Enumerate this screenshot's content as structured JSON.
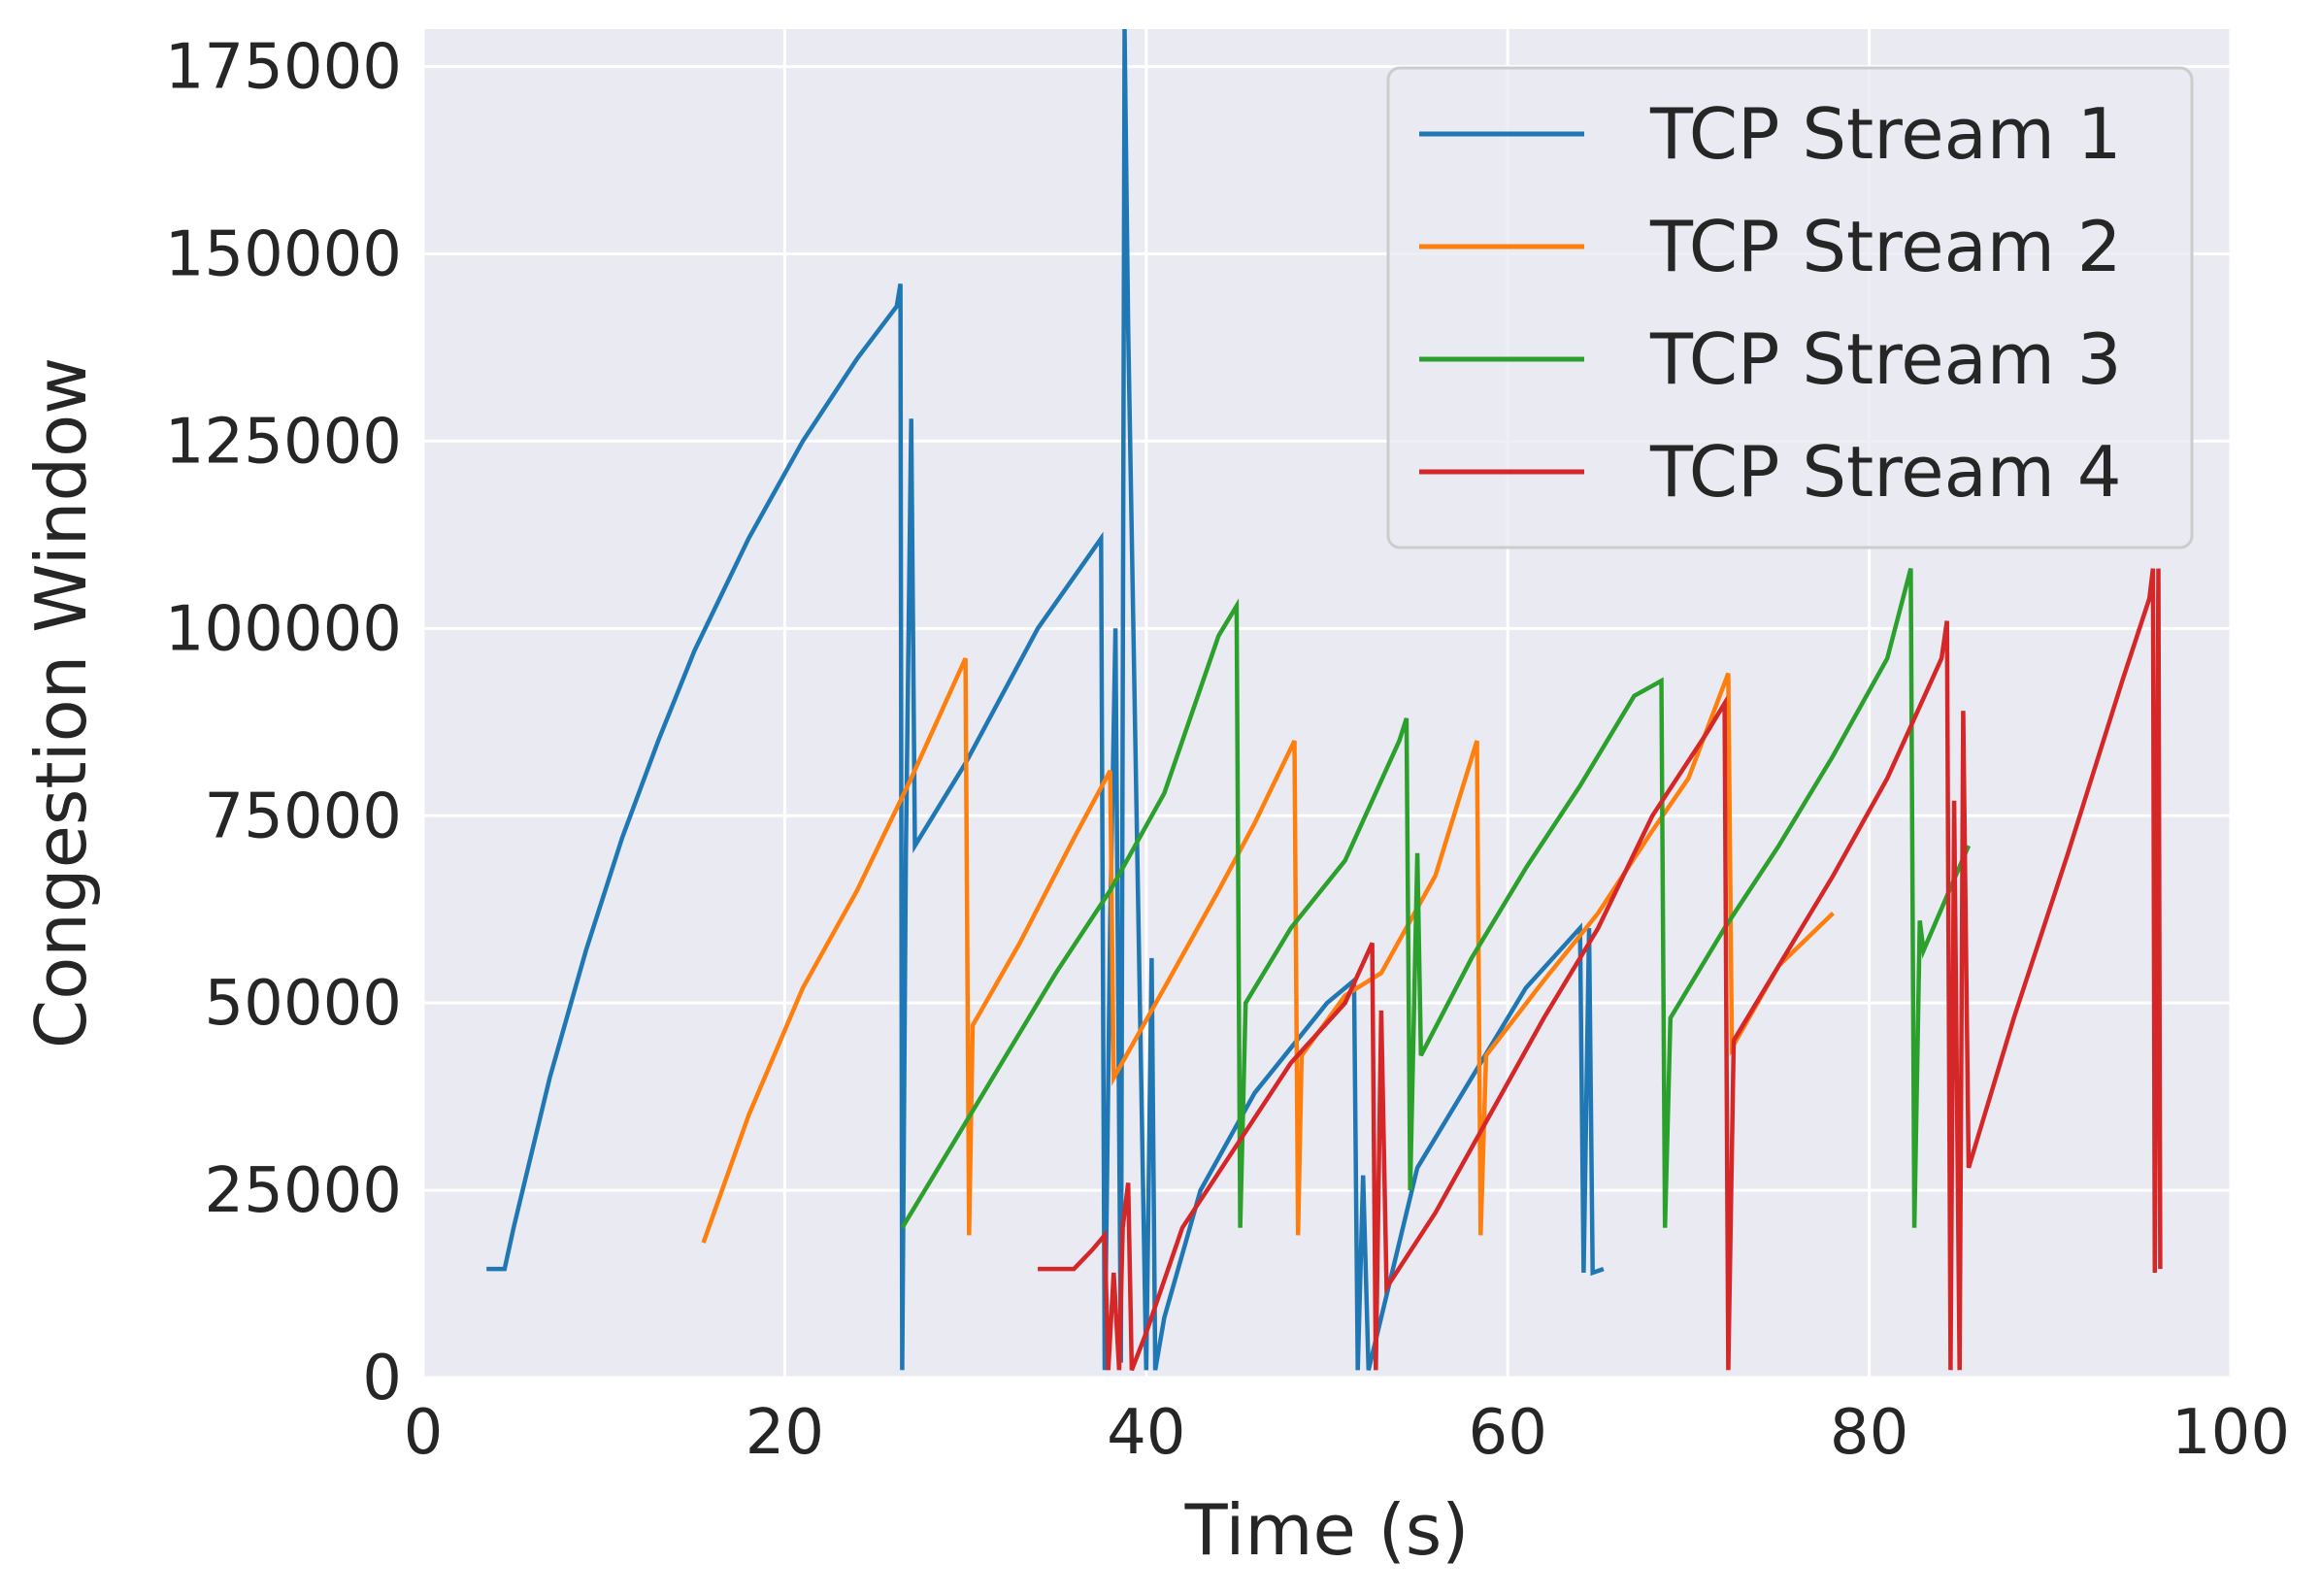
{
  "chart_data": {
    "type": "line",
    "title": "",
    "xlabel": "Time (s)",
    "ylabel": "Congestion Window",
    "xlim": [
      0,
      100
    ],
    "ylim": [
      0,
      180000
    ],
    "xticks": [
      0,
      20,
      40,
      60,
      80,
      100
    ],
    "yticks": [
      0,
      25000,
      50000,
      75000,
      100000,
      125000,
      150000,
      175000
    ],
    "grid": true,
    "background": "#eaeaf2",
    "legend_position": "top-right",
    "series": [
      {
        "name": "TCP Stream 1",
        "color": "#1f77b4",
        "points": [
          [
            3.5,
            14500
          ],
          [
            4.5,
            14500
          ],
          [
            5,
            20000
          ],
          [
            7,
            40000
          ],
          [
            9,
            57000
          ],
          [
            11,
            72000
          ],
          [
            13,
            85000
          ],
          [
            15,
            97000
          ],
          [
            18,
            112000
          ],
          [
            21,
            125000
          ],
          [
            24,
            136000
          ],
          [
            26.2,
            143000
          ],
          [
            26.4,
            146000
          ],
          [
            26.5,
            1000
          ],
          [
            26.7,
            70000
          ],
          [
            27,
            128000
          ],
          [
            27.2,
            71000
          ],
          [
            30,
            82000
          ],
          [
            34,
            100000
          ],
          [
            37.5,
            112000
          ],
          [
            37.7,
            1000
          ],
          [
            38,
            60000
          ],
          [
            38.3,
            100000
          ],
          [
            38.6,
            2000
          ],
          [
            38.8,
            180000
          ],
          [
            39,
            140000
          ],
          [
            40,
            1000
          ],
          [
            40.3,
            56000
          ],
          [
            40.5,
            1000
          ],
          [
            41,
            8000
          ],
          [
            43,
            25000
          ],
          [
            46,
            38000
          ],
          [
            50,
            50000
          ],
          [
            51.5,
            53000
          ],
          [
            51.7,
            1000
          ],
          [
            52,
            27000
          ],
          [
            52.3,
            1000
          ],
          [
            55,
            28000
          ],
          [
            58,
            40000
          ],
          [
            61,
            52000
          ],
          [
            64,
            60000
          ],
          [
            64.2,
            14000
          ],
          [
            64.5,
            60000
          ],
          [
            64.7,
            14000
          ],
          [
            65.3,
            14500
          ]
        ]
      },
      {
        "name": "TCP Stream 2",
        "color": "#ff7f0e",
        "points": [
          [
            15.5,
            18000
          ],
          [
            18,
            35000
          ],
          [
            21,
            52000
          ],
          [
            24,
            65000
          ],
          [
            27,
            80000
          ],
          [
            30,
            96000
          ],
          [
            30.2,
            19000
          ],
          [
            30.4,
            47000
          ],
          [
            33,
            58000
          ],
          [
            36,
            72000
          ],
          [
            38,
            81000
          ],
          [
            38.2,
            40000
          ],
          [
            41,
            52000
          ],
          [
            44,
            65000
          ],
          [
            46,
            74000
          ],
          [
            48.2,
            85000
          ],
          [
            48.4,
            19000
          ],
          [
            48.6,
            43000
          ],
          [
            51,
            51000
          ],
          [
            53,
            54000
          ],
          [
            56,
            67000
          ],
          [
            58.3,
            85000
          ],
          [
            58.5,
            19000
          ],
          [
            58.8,
            43000
          ],
          [
            62,
            53000
          ],
          [
            65,
            62000
          ],
          [
            68,
            73000
          ],
          [
            70,
            80000
          ],
          [
            72.2,
            94000
          ],
          [
            72.4,
            44000
          ],
          [
            75,
            55000
          ],
          [
            78,
            62000
          ]
        ]
      },
      {
        "name": "TCP Stream 3",
        "color": "#2ca02c",
        "points": [
          [
            26.5,
            20000
          ],
          [
            29,
            30000
          ],
          [
            32,
            42000
          ],
          [
            35,
            54000
          ],
          [
            38,
            65000
          ],
          [
            41,
            78000
          ],
          [
            44,
            99000
          ],
          [
            45,
            103000
          ],
          [
            45.2,
            20000
          ],
          [
            45.5,
            50000
          ],
          [
            48,
            60000
          ],
          [
            51,
            69000
          ],
          [
            54,
            85000
          ],
          [
            54.4,
            88000
          ],
          [
            54.6,
            25000
          ],
          [
            55,
            70000
          ],
          [
            55.2,
            43000
          ],
          [
            58,
            56000
          ],
          [
            61,
            68000
          ],
          [
            64,
            79000
          ],
          [
            67,
            91000
          ],
          [
            68.5,
            93000
          ],
          [
            68.7,
            20000
          ],
          [
            69,
            48000
          ],
          [
            72,
            60000
          ],
          [
            75,
            71000
          ],
          [
            78,
            83000
          ],
          [
            81,
            96000
          ],
          [
            82.3,
            108000
          ],
          [
            82.5,
            20000
          ],
          [
            82.8,
            61000
          ],
          [
            83,
            57000
          ],
          [
            85.5,
            71000
          ]
        ]
      },
      {
        "name": "TCP Stream 4",
        "color": "#d62728",
        "points": [
          [
            34,
            14500
          ],
          [
            36,
            14500
          ],
          [
            37,
            17000
          ],
          [
            37.7,
            19000
          ],
          [
            37.9,
            1000
          ],
          [
            38.2,
            14000
          ],
          [
            38.5,
            1000
          ],
          [
            38.7,
            20000
          ],
          [
            39,
            26000
          ],
          [
            39.2,
            1000
          ],
          [
            40,
            6000
          ],
          [
            42,
            20000
          ],
          [
            45,
            31000
          ],
          [
            48,
            42000
          ],
          [
            51,
            50000
          ],
          [
            52.5,
            58000
          ],
          [
            52.7,
            1000
          ],
          [
            53,
            49000
          ],
          [
            53.3,
            12000
          ],
          [
            56,
            22000
          ],
          [
            59,
            35000
          ],
          [
            62,
            48000
          ],
          [
            65,
            60000
          ],
          [
            68,
            75000
          ],
          [
            71,
            86000
          ],
          [
            72,
            90000
          ],
          [
            72.2,
            1000
          ],
          [
            72.5,
            45000
          ],
          [
            75,
            55000
          ],
          [
            78,
            67000
          ],
          [
            81,
            80000
          ],
          [
            84,
            96000
          ],
          [
            84.3,
            101000
          ],
          [
            84.5,
            1000
          ],
          [
            84.7,
            77000
          ],
          [
            85,
            1000
          ],
          [
            85.2,
            89000
          ],
          [
            85.5,
            28000
          ],
          [
            88,
            48000
          ],
          [
            91,
            70000
          ],
          [
            94,
            93000
          ],
          [
            95.5,
            104000
          ],
          [
            95.7,
            108000
          ],
          [
            95.8,
            14000
          ],
          [
            96,
            108000
          ],
          [
            96.1,
            14500
          ]
        ]
      }
    ]
  }
}
